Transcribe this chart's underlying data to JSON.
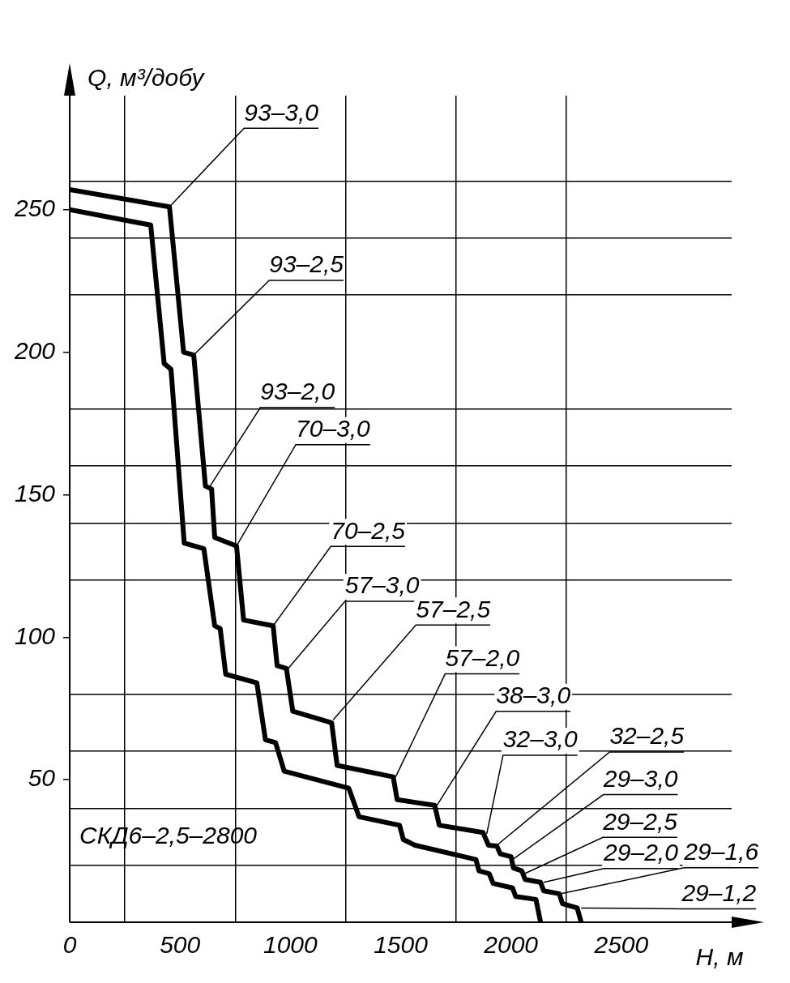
{
  "chart_data": {
    "type": "line",
    "xlabel": "H, м",
    "ylabel": "Q, м³/добу",
    "xlim": [
      0,
      3000
    ],
    "ylim": [
      0,
      290
    ],
    "xticks": [
      {
        "value": 0,
        "label": "0"
      },
      {
        "value": 250,
        "label": null
      },
      500,
      {
        "value": 750,
        "label": null
      },
      1000,
      {
        "value": 1250,
        "label": null
      },
      1500,
      {
        "value": 1750,
        "label": null
      },
      2000,
      {
        "value": 2250,
        "label": null
      },
      2500
    ],
    "yticks": [
      {
        "value": 0,
        "label": null
      },
      {
        "value": 20,
        "label": null
      },
      {
        "value": 40,
        "label": null
      },
      50,
      {
        "value": 60,
        "label": null
      },
      {
        "value": 80,
        "label": null
      },
      100,
      {
        "value": 120,
        "label": null
      },
      {
        "value": 140,
        "label": null
      },
      150,
      {
        "value": 160,
        "label": null
      },
      {
        "value": 180,
        "label": null
      },
      200,
      {
        "value": 220,
        "label": null
      },
      {
        "value": 240,
        "label": null
      },
      250,
      {
        "value": 260,
        "label": null
      }
    ],
    "grid": true,
    "legend": false,
    "marker": "none",
    "line_style": "solid",
    "series": [
      {
        "color": "#000000",
        "x": [
          0,
          452,
          516,
          562,
          615,
          643,
          657,
          756,
          788,
          922,
          940,
          982,
          1011,
          1187,
          1212,
          1466,
          1484,
          1654,
          1675,
          1873,
          1898,
          1936,
          1951,
          2000,
          2011,
          2049,
          2064,
          2134,
          2148,
          2219,
          2233,
          2300,
          2318
        ],
        "values": [
          257,
          251,
          200,
          199,
          153,
          152,
          135,
          132,
          106,
          104,
          90,
          89,
          74,
          70,
          55,
          51,
          43,
          41,
          34,
          31.5,
          27,
          26.7,
          24,
          23,
          19,
          18,
          15,
          14,
          11,
          10,
          6.5,
          5,
          0
        ]
      },
      {
        "color": "#000000",
        "x": [
          0,
          367,
          428,
          459,
          519,
          608,
          657,
          682,
          707,
          848,
          887,
          933,
          972,
          1265,
          1311,
          1495,
          1512,
          1565,
          1841,
          1855,
          1901,
          1919,
          2007,
          2021,
          2113,
          2134
        ],
        "values": [
          250,
          244.6,
          196,
          194,
          133,
          131,
          104,
          103,
          87,
          84,
          64,
          63,
          53,
          47,
          37,
          34,
          29,
          27,
          22,
          18,
          17,
          13.6,
          12,
          9,
          8,
          0
        ]
      }
    ],
    "annotations": [
      {
        "text": "93–3,0",
        "x": 452,
        "y": 251
      },
      {
        "text": "93–2,5",
        "x": 562,
        "y": 199
      },
      {
        "text": "93–2,0",
        "x": 636,
        "y": 153
      },
      {
        "text": "70–3,0",
        "x": 756,
        "y": 132
      },
      {
        "text": "70–2,5",
        "x": 922,
        "y": 104
      },
      {
        "text": "57–3,0",
        "x": 990,
        "y": 89
      },
      {
        "text": "57–2,5",
        "x": 1194,
        "y": 71
      },
      {
        "text": "57–2,0",
        "x": 1477,
        "y": 51
      },
      {
        "text": "38–3,0",
        "x": 1664,
        "y": 41
      },
      {
        "text": "32–3,0",
        "x": 1890,
        "y": 31
      },
      {
        "text": "32–2,5",
        "x": 1936,
        "y": 27
      },
      {
        "text": "29–3,0",
        "x": 2007,
        "y": 22
      },
      {
        "text": "29–2,5",
        "x": 2060,
        "y": 17
      },
      {
        "text": "29–2,0",
        "x": 2148,
        "y": 14
      },
      {
        "text": "29–1,6",
        "x": 2226,
        "y": 10
      },
      {
        "text": "29–1,2",
        "x": 2318,
        "y": 5
      },
      "СКД6–2,5–2800"
    ]
  }
}
